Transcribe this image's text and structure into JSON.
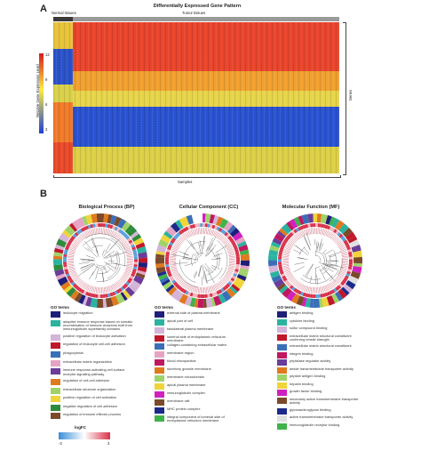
{
  "panel_a": {
    "letter": "A",
    "title": "Differentially Expressed Gene Pattern",
    "group_normal": "Normal tissues",
    "group_tumor": "Tumor tissues",
    "y_label": "Relative Gene Expression Level",
    "y_right_label": "Genes",
    "x_label": "Samples",
    "scale_ticks": [
      "12",
      "9",
      "6",
      "3"
    ]
  },
  "panel_b": {
    "letter": "B",
    "legend_head": "GO terms",
    "logfc_label": "logFC",
    "logfc_ticks": [
      "-3",
      "3"
    ],
    "panels": [
      {
        "title": "Biological Process (BP)",
        "terms": [
          {
            "text": "leukocyte migration",
            "color": "#1f1f7a"
          },
          {
            "text": "adaptive immune response based on somatic recombination of immune receptors built from immunoglobulin superfamily domains",
            "color": "#2bb3a0"
          },
          {
            "text": "positive regulation of leukocyte activation",
            "color": "#d4b4d8"
          },
          {
            "text": "regulation of leukocyte cell-cell adhesion",
            "color": "#c0182a"
          },
          {
            "text": "phagocytosis",
            "color": "#3a6fb8"
          },
          {
            "text": "extracellular matrix organization",
            "color": "#e6a4c4"
          },
          {
            "text": "immune response-activating cell surface receptor signaling pathway",
            "color": "#6a3d9a"
          },
          {
            "text": "regulation of cell-cell adhesion",
            "color": "#e07a1e"
          },
          {
            "text": "extracellular structure organization",
            "color": "#9fd36a"
          },
          {
            "text": "positive regulation of cell activation",
            "color": "#f0d43a"
          },
          {
            "text": "negative regulation of cell adhesion",
            "color": "#2c8c3c"
          },
          {
            "text": "regulation of immune effector process",
            "color": "#7b4a2a"
          }
        ]
      },
      {
        "title": "Cellular Component (CC)",
        "terms": [
          {
            "text": "external side of plasma membrane",
            "color": "#1f1f7a"
          },
          {
            "text": "apical part of cell",
            "color": "#2bb3a0"
          },
          {
            "text": "basolateral plasma membrane",
            "color": "#d4b4d8"
          },
          {
            "text": "lumenal side of endoplasmic reticulum membrane",
            "color": "#c0182a"
          },
          {
            "text": "collagen-containing extracellular matrix",
            "color": "#3a6fb8"
          },
          {
            "text": "membrane region",
            "color": "#e6a4c4"
          },
          {
            "text": "blood microparticle",
            "color": "#c01860"
          },
          {
            "text": "secretory granule membrane",
            "color": "#e07a1e"
          },
          {
            "text": "membrane microdomain",
            "color": "#9fd36a"
          },
          {
            "text": "apical plasma membrane",
            "color": "#f0d43a"
          },
          {
            "text": "immunoglobulin complex",
            "color": "#d020c0"
          },
          {
            "text": "membrane raft",
            "color": "#7b4a2a"
          },
          {
            "text": "MHC protein complex",
            "color": "#1b2a8a"
          },
          {
            "text": "integral component of lumenal side of endoplasmic reticulum membrane",
            "color": "#3fb34a"
          }
        ]
      },
      {
        "title": "Molecular Function (MF)",
        "terms": [
          {
            "text": "antigen binding",
            "color": "#1f1f7a"
          },
          {
            "text": "cytokine binding",
            "color": "#2bb3a0"
          },
          {
            "text": "sulfur compound binding",
            "color": "#d4b4d8"
          },
          {
            "text": "extracellular matrix structural constituent conferring tensile strength",
            "color": "#c0182a"
          },
          {
            "text": "extracellular matrix structural constituent",
            "color": "#3a6fb8"
          },
          {
            "text": "integrin binding",
            "color": "#c01860"
          },
          {
            "text": "peptidase regulator activity",
            "color": "#6a3d9a"
          },
          {
            "text": "amide transmembrane transporter activity",
            "color": "#e07a1e"
          },
          {
            "text": "peptide antigen binding",
            "color": "#9fd36a"
          },
          {
            "text": "heparin binding",
            "color": "#f0d43a"
          },
          {
            "text": "growth factor binding",
            "color": "#d020c0"
          },
          {
            "text": "secondary active transmembrane transporter activity",
            "color": "#7b4a2a"
          },
          {
            "text": "glycosaminoglycan binding",
            "color": "#1b2a8a"
          },
          {
            "text": "active transmembrane transporter activity",
            "color": "#e0e0e0"
          },
          {
            "text": "immunoglobulin receptor binding",
            "color": "#3fb34a"
          }
        ]
      }
    ]
  }
}
